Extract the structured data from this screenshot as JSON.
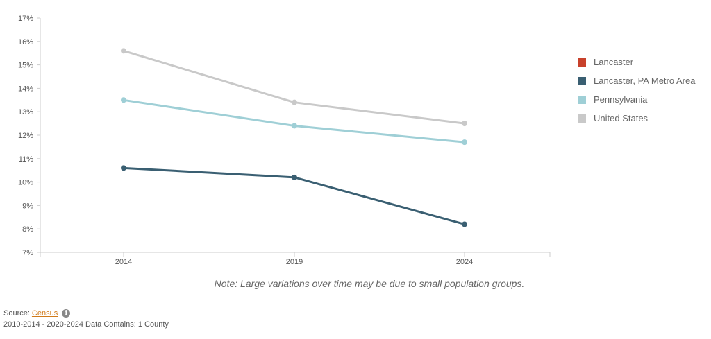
{
  "chart_data": {
    "type": "line",
    "categories": [
      "2014",
      "2019",
      "2024"
    ],
    "ylim": [
      7,
      17
    ],
    "ytick_step": 1,
    "ytick_suffix": "%",
    "grid": false,
    "legend_position": "right",
    "series": [
      {
        "name": "Lancaster",
        "color": "#c8412b",
        "values": [
          null,
          null,
          null
        ]
      },
      {
        "name": "Lancaster, PA Metro Area",
        "color": "#3a5f72",
        "values": [
          10.6,
          10.2,
          8.2
        ]
      },
      {
        "name": "Pennsylvania",
        "color": "#9fcfd6",
        "values": [
          13.5,
          12.4,
          11.7
        ]
      },
      {
        "name": "United States",
        "color": "#c9c9c9",
        "values": [
          15.6,
          13.4,
          12.5
        ]
      }
    ]
  },
  "note": "Note: Large variations over time may be due to small population groups.",
  "source": {
    "label": "Source:",
    "link_text": "Census",
    "info_icon": "info-icon"
  },
  "data_contains": "2010-2014 - 2020-2024 Data Contains: 1 County"
}
